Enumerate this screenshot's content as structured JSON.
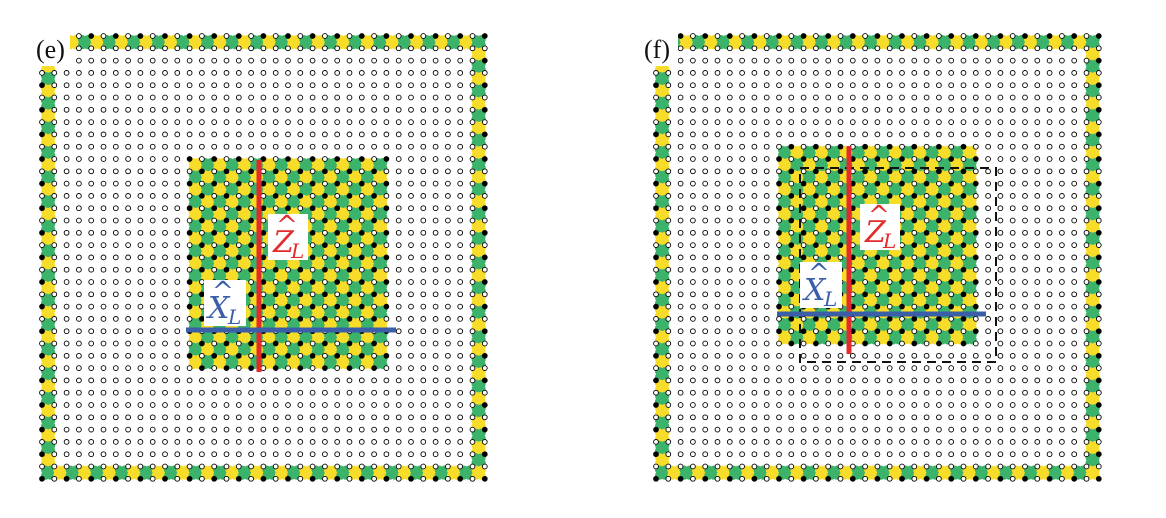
{
  "panels": [
    {
      "label": "(e)",
      "z_operator": {
        "symbol": "Z",
        "hat": "^",
        "subscript": "L",
        "color": "#e32b2b"
      },
      "x_operator": {
        "symbol": "X",
        "hat": "^",
        "subscript": "L",
        "color": "#3a5ea8"
      },
      "dashed_outline": false
    },
    {
      "label": "(f)",
      "z_operator": {
        "symbol": "Z",
        "hat": "^",
        "subscript": "L",
        "color": "#e32b2b"
      },
      "x_operator": {
        "symbol": "X",
        "hat": "^",
        "subscript": "L",
        "color": "#3a5ea8"
      },
      "dashed_outline": true
    }
  ],
  "colors": {
    "yellow_stabilizer": "#f7dc2a",
    "green_stabilizer": "#3cb36a",
    "qubit_filled": "#000000",
    "qubit_empty": "#ffffff",
    "z_logical": "#e32b2b",
    "x_logical": "#3a5ea8"
  }
}
